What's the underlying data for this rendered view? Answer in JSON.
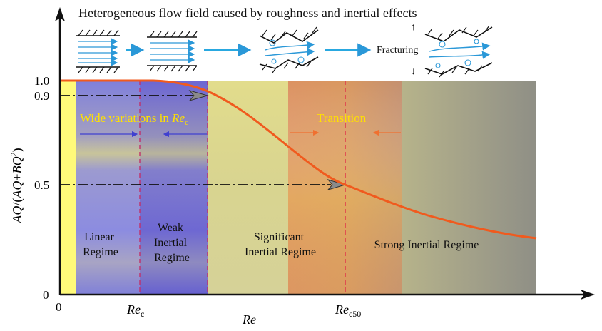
{
  "title": "Heterogeneous flow field caused by roughness and inertial effects",
  "fracturing_label": "Fracturing",
  "y_axis": {
    "label_parts": {
      "a": "AQ",
      "b": "/(",
      "c": "AQ",
      "d": "+",
      "e": "BQ",
      "f": "2",
      "g": ")"
    },
    "ticks": [
      {
        "label": "1.0"
      },
      {
        "label": "0.9"
      },
      {
        "label": "0.5"
      },
      {
        "label": "0"
      }
    ]
  },
  "x_axis": {
    "label": "Re",
    "origin_label": "0",
    "rec": {
      "main": "Re",
      "sub": "c"
    },
    "rec50": {
      "main": "Re",
      "sub": "c50"
    }
  },
  "annotations": {
    "wide_variations": {
      "text": "Wide variations in ",
      "italic": "Re",
      "sub": "c"
    },
    "transition": "Transition"
  },
  "regimes": [
    {
      "lines": [
        "Linear",
        "Regime"
      ]
    },
    {
      "lines": [
        "Weak",
        "Inertial",
        "Regime"
      ]
    },
    {
      "lines": [
        "Significant",
        "Inertial Regime"
      ]
    },
    {
      "lines": [
        "Strong Inertial Regime"
      ]
    }
  ],
  "colors": {
    "curve": "#f05a1e",
    "yellow_band": "#fffa7a",
    "linear_regime": "#8b8be0",
    "weak_inertial": "#6a64d2",
    "significant_inertial": "#dcd78c",
    "transition_zone": "#d68a5c",
    "strong_inertial": "#8f8f86",
    "flow_arrows": "#29a8e0"
  }
}
